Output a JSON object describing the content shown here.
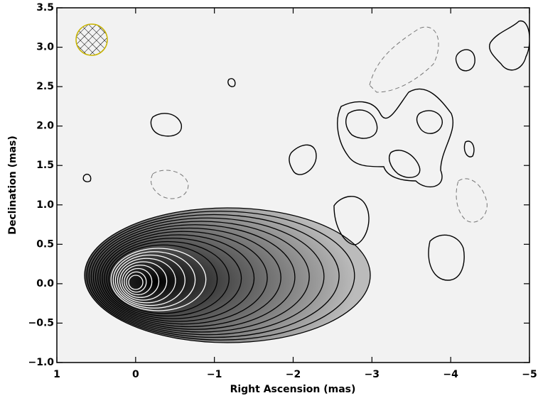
{
  "chart_data": {
    "type": "contour",
    "x_label": "Right Ascension (mas)",
    "y_label": "Declination (mas)",
    "xlim": [
      1,
      -5
    ],
    "ylim": [
      -1.0,
      3.5
    ],
    "xticks": [
      1,
      0,
      {
        "value": -1,
        "label": "−1"
      },
      {
        "value": -2,
        "label": "−2"
      },
      {
        "value": -3,
        "label": "−3"
      },
      {
        "value": -4,
        "label": "−4"
      },
      {
        "value": -5,
        "label": "−5"
      }
    ],
    "yticks": [
      {
        "value": -1.0,
        "label": "−1.0"
      },
      {
        "value": -0.5,
        "label": "−0.5"
      },
      {
        "value": 0.0,
        "label": "0.0"
      },
      {
        "value": 0.5,
        "label": "0.5"
      },
      {
        "value": 1.0,
        "label": "1.0"
      },
      {
        "value": 1.5,
        "label": "1.5"
      },
      {
        "value": 2.0,
        "label": "2.0"
      },
      {
        "value": 2.5,
        "label": "2.5"
      },
      {
        "value": 3.0,
        "label": "3.0"
      },
      {
        "value": 3.5,
        "label": "3.5"
      }
    ]
  }
}
